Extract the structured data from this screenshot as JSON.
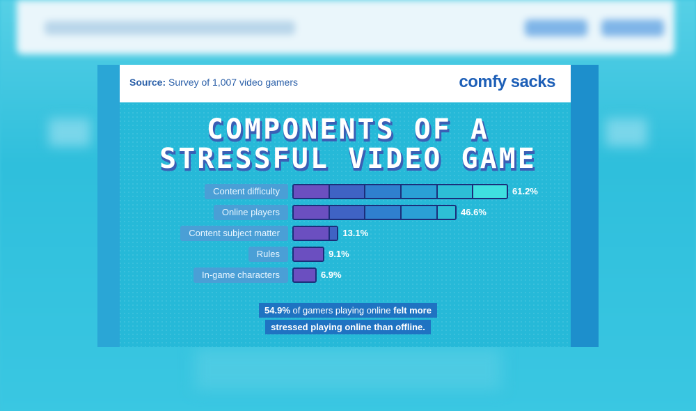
{
  "page": {
    "source_label": "Source:",
    "source_text": "Survey of 1,007 video gamers",
    "brand": "comfy sacks",
    "title_line1": "COMPONENTS OF A",
    "title_line2": "STRESSFUL VIDEO GAME",
    "footnote_bold_start": "54.9%",
    "footnote_mid": " of gamers playing online ",
    "footnote_bold_end": "felt more",
    "footnote_line2": "stressed playing online than offline."
  },
  "colors": {
    "segments": [
      "#6b4fc0",
      "#3f63c4",
      "#2f80cf",
      "#2aa0d6",
      "#2dbfd6",
      "#3fe0e0"
    ],
    "outline": "#1b2e7a"
  },
  "chart_data": {
    "type": "bar",
    "orientation": "horizontal",
    "title": "COMPONENTS OF A STRESSFUL VIDEO GAME",
    "categories": [
      "Content difficulty",
      "Online players",
      "Content subject matter",
      "Rules",
      "In-game characters"
    ],
    "values": [
      61.2,
      46.6,
      13.1,
      9.1,
      6.9
    ],
    "value_labels": [
      "61.2%",
      "46.6%",
      "13.1%",
      "9.1%",
      "6.9%"
    ],
    "xlim": [
      0,
      61.2
    ],
    "grid": false
  }
}
